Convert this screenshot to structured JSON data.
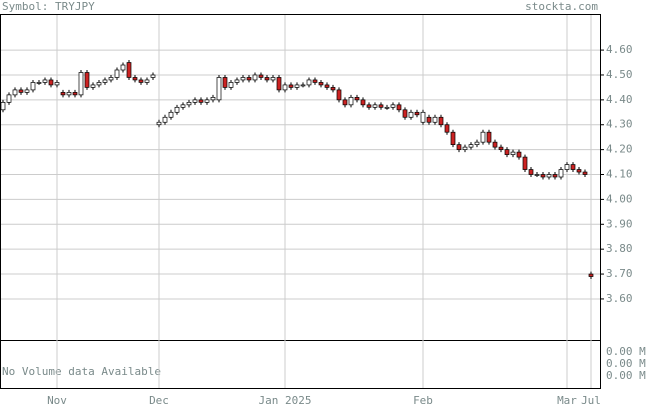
{
  "chart_data": {
    "type": "candlestick",
    "title": "Symbol: TRYJPY",
    "source": "stockta.com",
    "volume_note": "No Volume data Available",
    "volume_ticks": [
      "0.00 M",
      "0.00 M",
      "0.00 M"
    ],
    "up_color": "#ffffff",
    "down_color": "#cc2222",
    "ylim": [
      3.435,
      4.745
    ],
    "yticks": [
      {
        "value": 3.6,
        "label": "3.60"
      },
      {
        "value": 3.7,
        "label": "3.70"
      },
      {
        "value": 3.8,
        "label": "3.80"
      },
      {
        "value": 3.9,
        "label": "3.90"
      },
      {
        "value": 4.0,
        "label": "4.00"
      },
      {
        "value": 4.1,
        "label": "4.10"
      },
      {
        "value": 4.2,
        "label": "4.20"
      },
      {
        "value": 4.3,
        "label": "4.30"
      },
      {
        "value": 4.4,
        "label": "4.40"
      },
      {
        "value": 4.5,
        "label": "4.50"
      },
      {
        "value": 4.6,
        "label": "4.60"
      }
    ],
    "grid": true,
    "categories": [
      null,
      null,
      null,
      null,
      null,
      null,
      null,
      null,
      null,
      "Nov",
      null,
      null,
      null,
      null,
      null,
      null,
      null,
      null,
      null,
      null,
      null,
      null,
      null,
      null,
      null,
      null,
      "Dec",
      null,
      null,
      null,
      null,
      null,
      null,
      null,
      null,
      null,
      null,
      null,
      null,
      null,
      null,
      null,
      null,
      null,
      null,
      null,
      null,
      "Jan 2025",
      null,
      null,
      null,
      null,
      null,
      null,
      null,
      null,
      null,
      null,
      null,
      null,
      null,
      null,
      null,
      null,
      null,
      null,
      null,
      null,
      null,
      null,
      "Feb",
      null,
      null,
      null,
      null,
      null,
      null,
      null,
      null,
      null,
      null,
      null,
      null,
      null,
      null,
      null,
      null,
      null,
      null,
      null,
      null,
      null,
      null,
      null,
      "Mar",
      null,
      null,
      null,
      "Jul"
    ],
    "open": [
      4.36,
      4.39,
      4.42,
      4.44,
      4.43,
      4.44,
      4.47,
      4.47,
      4.48,
      4.46,
      4.43,
      4.42,
      4.43,
      4.42,
      4.51,
      4.45,
      4.46,
      4.47,
      4.48,
      4.49,
      4.52,
      4.55,
      4.49,
      4.48,
      4.47,
      4.49,
      4.3,
      4.31,
      4.33,
      4.35,
      4.37,
      4.38,
      4.39,
      4.4,
      4.39,
      4.4,
      4.4,
      4.49,
      4.45,
      4.47,
      4.48,
      4.49,
      4.48,
      4.5,
      4.49,
      4.48,
      4.49,
      4.44,
      4.46,
      4.45,
      4.46,
      4.46,
      4.48,
      4.47,
      4.46,
      4.45,
      4.44,
      4.4,
      4.38,
      4.41,
      4.4,
      4.38,
      4.37,
      4.38,
      4.37,
      4.37,
      4.38,
      4.36,
      4.33,
      4.35,
      4.31,
      4.33,
      4.31,
      4.33,
      4.3,
      4.27,
      4.22,
      4.2,
      4.21,
      4.22,
      4.23,
      4.27,
      4.23,
      4.21,
      4.2,
      4.18,
      4.19,
      4.17,
      4.12,
      4.1,
      4.1,
      4.09,
      4.1,
      4.09,
      4.12,
      4.14,
      4.12,
      4.11,
      3.7
    ],
    "high": [
      4.4,
      4.43,
      4.45,
      4.45,
      4.45,
      4.48,
      4.48,
      4.49,
      4.49,
      4.48,
      4.44,
      4.44,
      4.44,
      4.52,
      4.52,
      4.47,
      4.48,
      4.49,
      4.5,
      4.53,
      4.55,
      4.56,
      4.5,
      4.49,
      4.49,
      4.51,
      4.32,
      4.34,
      4.36,
      4.38,
      4.39,
      4.4,
      4.41,
      4.41,
      4.41,
      4.42,
      4.5,
      4.5,
      4.48,
      4.49,
      4.5,
      4.5,
      4.51,
      4.51,
      4.5,
      4.5,
      4.5,
      4.47,
      4.47,
      4.47,
      4.47,
      4.49,
      4.49,
      4.48,
      4.47,
      4.46,
      4.45,
      4.41,
      4.42,
      4.42,
      4.41,
      4.39,
      4.39,
      4.39,
      4.38,
      4.39,
      4.39,
      4.37,
      4.36,
      4.36,
      4.36,
      4.34,
      4.34,
      4.34,
      4.31,
      4.28,
      4.23,
      4.22,
      4.23,
      4.24,
      4.28,
      4.28,
      4.24,
      4.22,
      4.21,
      4.2,
      4.2,
      4.18,
      4.13,
      4.11,
      4.11,
      4.11,
      4.11,
      4.13,
      4.15,
      4.15,
      4.13,
      4.12,
      3.71
    ],
    "low": [
      4.35,
      4.38,
      4.41,
      4.42,
      4.42,
      4.43,
      4.46,
      4.46,
      4.45,
      4.45,
      4.41,
      4.41,
      4.41,
      4.41,
      4.44,
      4.44,
      4.45,
      4.46,
      4.47,
      4.48,
      4.51,
      4.48,
      4.47,
      4.46,
      4.46,
      4.48,
      4.29,
      4.3,
      4.32,
      4.34,
      4.36,
      4.37,
      4.38,
      4.38,
      4.38,
      4.39,
      4.39,
      4.44,
      4.44,
      4.46,
      4.47,
      4.47,
      4.47,
      4.48,
      4.47,
      4.47,
      4.43,
      4.43,
      4.44,
      4.44,
      4.45,
      4.45,
      4.46,
      4.45,
      4.44,
      4.43,
      4.39,
      4.37,
      4.37,
      4.39,
      4.37,
      4.36,
      4.36,
      4.36,
      4.36,
      4.36,
      4.35,
      4.32,
      4.32,
      4.33,
      4.3,
      4.3,
      4.3,
      4.29,
      4.26,
      4.21,
      4.19,
      4.19,
      4.2,
      4.21,
      4.22,
      4.22,
      4.2,
      4.19,
      4.17,
      4.17,
      4.16,
      4.11,
      4.09,
      4.09,
      4.08,
      4.08,
      4.08,
      4.08,
      4.11,
      4.11,
      4.1,
      4.09,
      3.68
    ],
    "close": [
      4.39,
      4.42,
      4.44,
      4.43,
      4.44,
      4.47,
      4.47,
      4.48,
      4.46,
      4.47,
      4.42,
      4.43,
      4.42,
      4.51,
      4.45,
      4.46,
      4.47,
      4.48,
      4.49,
      4.52,
      4.54,
      4.49,
      4.48,
      4.47,
      4.48,
      4.5,
      4.31,
      4.33,
      4.35,
      4.37,
      4.38,
      4.39,
      4.4,
      4.39,
      4.4,
      4.41,
      4.49,
      4.45,
      4.47,
      4.48,
      4.49,
      4.48,
      4.5,
      4.49,
      4.48,
      4.49,
      4.44,
      4.46,
      4.45,
      4.46,
      4.46,
      4.48,
      4.47,
      4.46,
      4.45,
      4.44,
      4.4,
      4.38,
      4.41,
      4.4,
      4.38,
      4.37,
      4.38,
      4.37,
      4.37,
      4.38,
      4.36,
      4.33,
      4.35,
      4.34,
      4.35,
      4.31,
      4.33,
      4.3,
      4.27,
      4.22,
      4.2,
      4.21,
      4.22,
      4.23,
      4.27,
      4.23,
      4.21,
      4.2,
      4.18,
      4.19,
      4.17,
      4.12,
      4.1,
      4.1,
      4.09,
      4.1,
      4.09,
      4.12,
      4.14,
      4.12,
      4.11,
      4.1,
      3.69
    ]
  }
}
